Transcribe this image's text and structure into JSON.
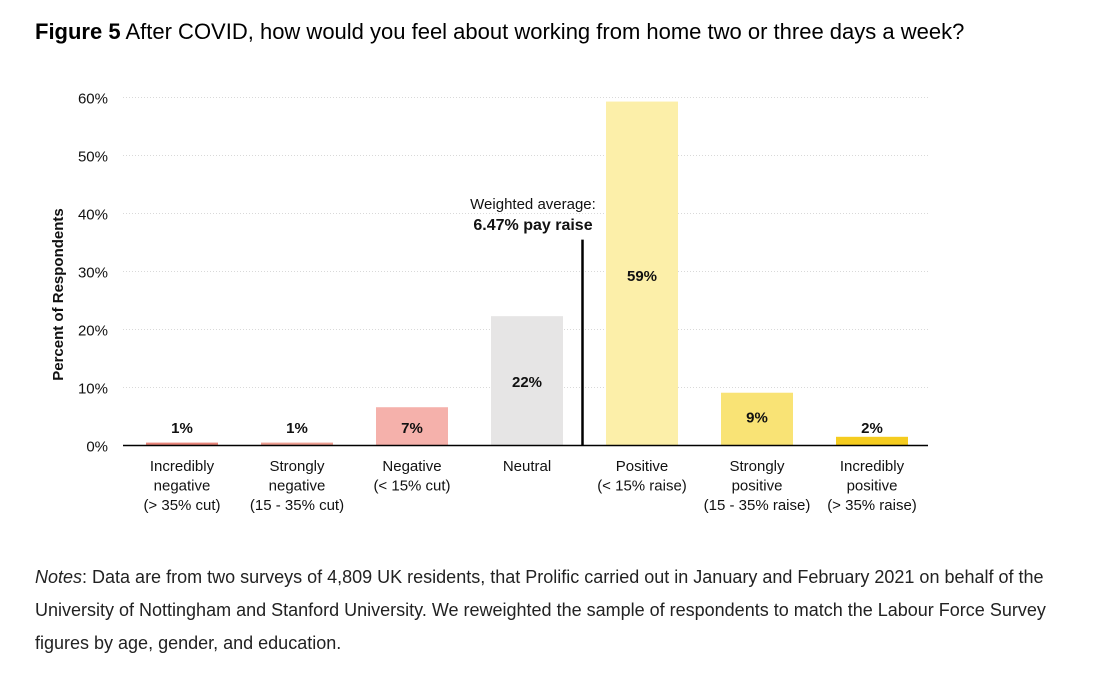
{
  "figure": {
    "label": "Figure 5",
    "title": "After COVID, how would you feel about working from home two or three days a week?"
  },
  "chart_data": {
    "type": "bar",
    "ylabel": "Percent of Respondents",
    "xlabel": "",
    "ylim": [
      0,
      60
    ],
    "yticks": [
      0,
      10,
      20,
      30,
      40,
      50,
      60
    ],
    "ytick_labels": [
      "0%",
      "10%",
      "20%",
      "30%",
      "40%",
      "50%",
      "60%"
    ],
    "grid": "horizontal dotted",
    "categories": [
      [
        "Incredibly",
        "negative",
        "(> 35% cut)"
      ],
      [
        "Strongly",
        "negative",
        "(15 - 35% cut)"
      ],
      [
        "Negative",
        "(< 15% cut)"
      ],
      [
        "Neutral"
      ],
      [
        "Positive",
        "(< 15% raise)"
      ],
      [
        "Strongly",
        "positive",
        "(15 - 35% raise)"
      ],
      [
        "Incredibly",
        "positive",
        "(> 35% raise)"
      ]
    ],
    "values": [
      0.5,
      0.5,
      6.6,
      22.3,
      59.3,
      9.1,
      1.5
    ],
    "data_labels": [
      "1%",
      "1%",
      "7%",
      "22%",
      "59%",
      "9%",
      "2%"
    ],
    "colors": [
      "#e8857a",
      "#ee9f92",
      "#f5b1ab",
      "#e6e5e5",
      "#fcefa9",
      "#f9e375",
      "#f5cc1f"
    ],
    "annotation": {
      "line1": "Weighted average:",
      "line2": "6.47% pay raise",
      "category_position": 3.5,
      "top_value": 35.5
    }
  },
  "notes": {
    "label": "Notes",
    "text": ": Data are from two surveys of 4,809 UK residents, that Prolific carried out in January and February 2021 on behalf of the University of Nottingham and Stanford University. We reweighted the sample of respondents to match the Labour Force Survey figures by age, gender, and education."
  }
}
